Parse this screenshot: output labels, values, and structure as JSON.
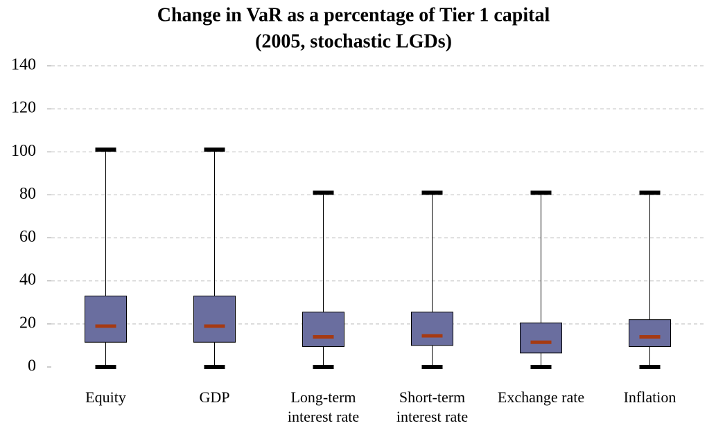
{
  "chart_data": {
    "type": "box",
    "title": "Change in VaR as a percentage of Tier 1 capital",
    "subtitle": "(2005, stochastic LGDs)",
    "categories": [
      "Equity",
      "GDP",
      "Long-term interest rate",
      "Short-term interest rate",
      "Exchange rate",
      "Inflation"
    ],
    "values": [
      {
        "min": 0,
        "q1": 11.5,
        "median": 19,
        "q3": 33,
        "max": 101
      },
      {
        "min": 0,
        "q1": 11.5,
        "median": 19,
        "q3": 33,
        "max": 101
      },
      {
        "min": 0,
        "q1": 9.5,
        "median": 14,
        "q3": 25.5,
        "max": 81
      },
      {
        "min": 0,
        "q1": 10,
        "median": 14.5,
        "q3": 25.5,
        "max": 81
      },
      {
        "min": 0,
        "q1": 6.5,
        "median": 11.5,
        "q3": 20.5,
        "max": 81
      },
      {
        "min": 0,
        "q1": 9.5,
        "median": 14,
        "q3": 22,
        "max": 81
      }
    ],
    "color": "#6a6e9f",
    "median_color": "#a63a12",
    "ylim": [
      0,
      140
    ],
    "yticks": [
      0,
      20,
      40,
      60,
      80,
      100,
      120,
      140
    ],
    "grid": true
  }
}
